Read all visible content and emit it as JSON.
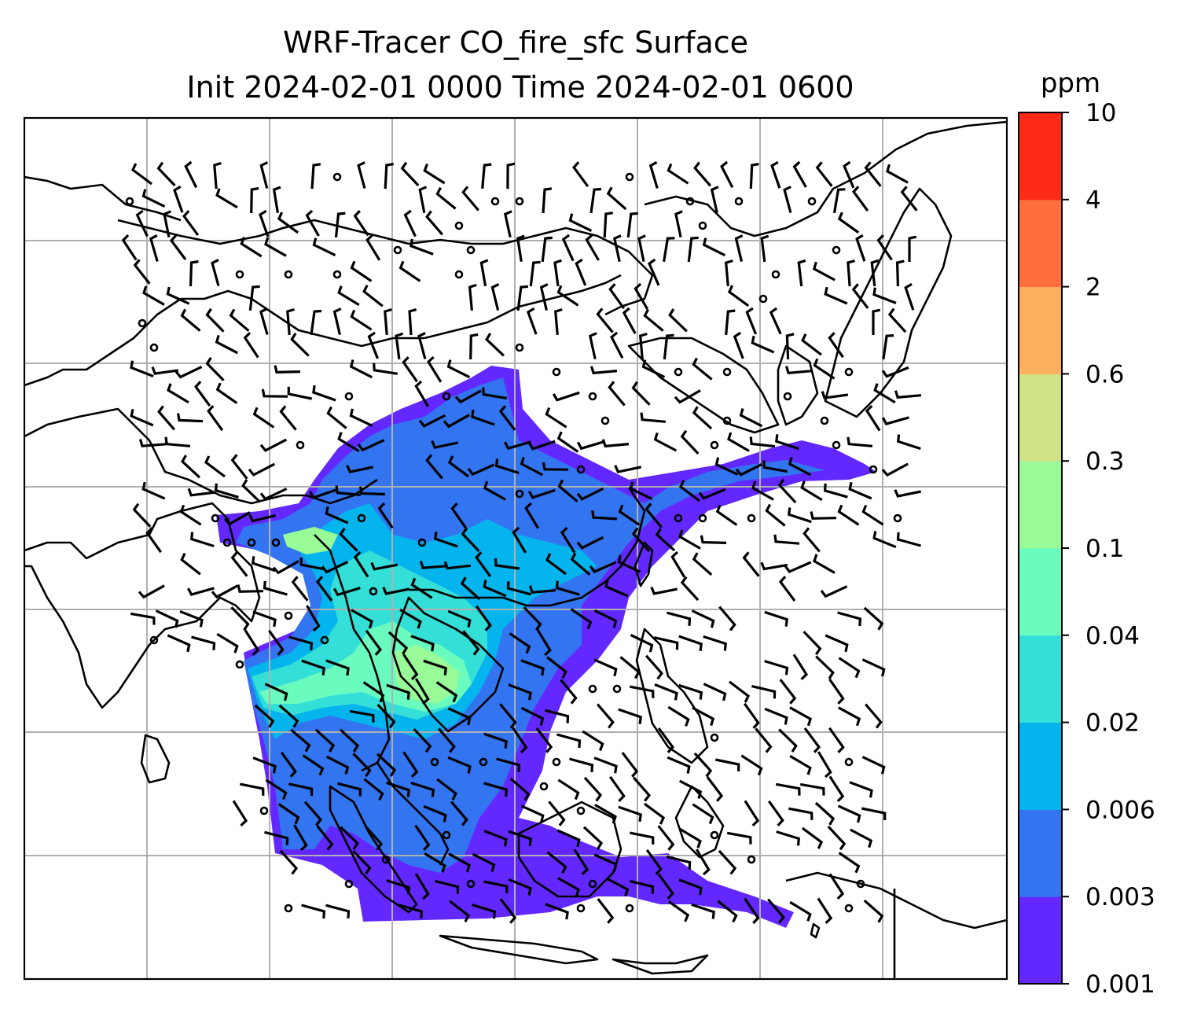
{
  "title_line1": "WRF-Tracer CO_fire_sfc Surface",
  "title_line2": "Init 2024-02-01 0000 Time 2024-02-01 0600",
  "colorbar": {
    "unit": "ppm",
    "tick_labels": [
      "0.001",
      "0.003",
      "0.006",
      "0.02",
      "0.04",
      "0.1",
      "0.3",
      "0.6",
      "2",
      "4",
      "10"
    ],
    "colors": [
      "#6328ff",
      "#3374f0",
      "#04b4ec",
      "#33dfd6",
      "#6afcbf",
      "#98fb98",
      "#d0e286",
      "#ffb05f",
      "#ff6e3b",
      "#fe2a19"
    ]
  },
  "chart_data": {
    "type": "heatmap",
    "variable": "CO_fire_sfc",
    "level": "Surface",
    "unit": "ppm",
    "init_time": "2024-02-01 0000",
    "valid_time": "2024-02-01 0600",
    "levels": [
      0.001,
      0.003,
      0.006,
      0.02,
      0.04,
      0.1,
      0.3,
      0.6,
      2,
      4,
      10
    ],
    "grid": true,
    "overlay": "wind barbs and coastlines",
    "colorbar_position": "right"
  }
}
